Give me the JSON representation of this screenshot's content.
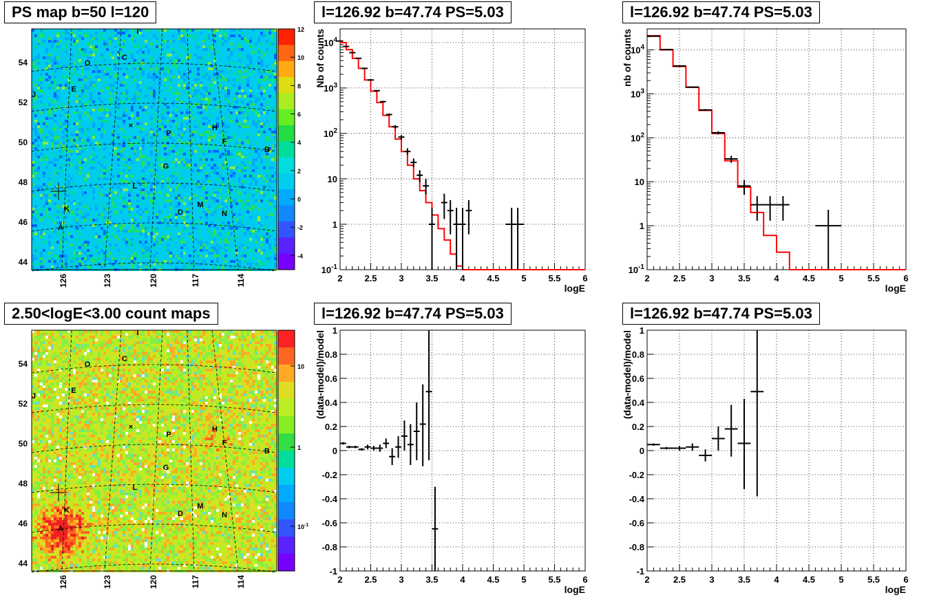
{
  "maps": [
    {
      "title": "PS map b=50 l=120",
      "scheme": "ps",
      "seed": 11,
      "colorbar_ticks": [
        "12",
        "10",
        "8",
        "6",
        "4",
        "2",
        "0",
        "-2",
        "-4"
      ],
      "colorbar_min": -5,
      "colorbar_max": 12
    },
    {
      "title": "2.50<logE<3.00 count maps",
      "scheme": "count",
      "seed": 29,
      "colorbar_ticks": [
        "10",
        "1",
        "10-1"
      ],
      "colorbar_min": 0,
      "colorbar_max": 1
    }
  ],
  "map_axes": {
    "lat_ticks": [
      "54",
      "52",
      "50",
      "48",
      "46",
      "44"
    ],
    "lon_ticks": [
      "126",
      "123",
      "120",
      "117",
      "114"
    ]
  },
  "sources": [
    {
      "name": "I"
    },
    {
      "name": "O"
    },
    {
      "name": "C"
    },
    {
      "name": "J"
    },
    {
      "name": "E"
    },
    {
      "name": "P"
    },
    {
      "name": "H"
    },
    {
      "name": "F"
    },
    {
      "name": "B"
    },
    {
      "name": "G"
    },
    {
      "name": "L"
    },
    {
      "name": "K"
    },
    {
      "name": "M"
    },
    {
      "name": "D"
    },
    {
      "name": "N"
    },
    {
      "name": "A"
    }
  ],
  "chart_data": [
    {
      "type": "line",
      "title": "l=126.92 b=47.74 PS=5.03",
      "xlabel": "logE",
      "ylabel": "Nb of counts",
      "xlim": [
        2,
        6
      ],
      "ylim": [
        0.1,
        20000
      ],
      "yscale": "log",
      "grid": true,
      "x_ticks": [
        "2",
        "2.5",
        "3",
        "3.5",
        "4",
        "4.5",
        "5",
        "5.5",
        "6"
      ],
      "y_ticks": [
        {
          "v": 10000,
          "base": "10",
          "exp": "4"
        },
        {
          "v": 1000,
          "base": "10",
          "exp": "3"
        },
        {
          "v": 100,
          "base": "10",
          "exp": "2"
        },
        {
          "v": 10,
          "base": "10",
          "exp": ""
        },
        {
          "v": 1,
          "base": "1",
          "exp": ""
        },
        {
          "v": 0.1,
          "base": "10",
          "exp": "-1"
        }
      ],
      "model_edges": [
        2.0,
        2.1,
        2.2,
        2.3,
        2.4,
        2.5,
        2.6,
        2.7,
        2.8,
        2.9,
        3.0,
        3.1,
        3.2,
        3.3,
        3.4,
        3.5,
        3.6,
        3.7,
        3.8,
        3.9,
        4.0,
        4.1,
        4.2,
        6.0
      ],
      "model_values": [
        10000,
        7000,
        4500,
        2700,
        1500,
        850,
        480,
        250,
        140,
        75,
        40,
        20,
        10,
        5.5,
        3.0,
        1.6,
        0.8,
        0.45,
        0.22,
        0.12,
        0.1,
        0.1,
        0.1
      ],
      "points": [
        {
          "x": 2.0,
          "y": 10800,
          "xerr": 0.05,
          "ylo": 10600,
          "yhi": 11000
        },
        {
          "x": 2.1,
          "y": 8200,
          "xerr": 0.05,
          "ylo": 8000,
          "yhi": 8400
        },
        {
          "x": 2.2,
          "y": 6000,
          "xerr": 0.05,
          "ylo": 5850,
          "yhi": 6150
        },
        {
          "x": 2.3,
          "y": 4500,
          "xerr": 0.05,
          "ylo": 4400,
          "yhi": 4600
        },
        {
          "x": 2.4,
          "y": 2700,
          "xerr": 0.05,
          "ylo": 2650,
          "yhi": 2750
        },
        {
          "x": 2.5,
          "y": 1500,
          "xerr": 0.05,
          "ylo": 1460,
          "yhi": 1540
        },
        {
          "x": 2.6,
          "y": 870,
          "xerr": 0.05,
          "ylo": 840,
          "yhi": 900
        },
        {
          "x": 2.7,
          "y": 500,
          "xerr": 0.05,
          "ylo": 480,
          "yhi": 520
        },
        {
          "x": 2.8,
          "y": 260,
          "xerr": 0.05,
          "ylo": 245,
          "yhi": 275
        },
        {
          "x": 2.9,
          "y": 140,
          "xerr": 0.05,
          "ylo": 128,
          "yhi": 152
        },
        {
          "x": 3.0,
          "y": 83,
          "xerr": 0.05,
          "ylo": 74,
          "yhi": 92
        },
        {
          "x": 3.1,
          "y": 40,
          "xerr": 0.05,
          "ylo": 34,
          "yhi": 47
        },
        {
          "x": 3.2,
          "y": 23,
          "xerr": 0.05,
          "ylo": 18,
          "yhi": 28
        },
        {
          "x": 3.3,
          "y": 12,
          "xerr": 0.05,
          "ylo": 8.5,
          "yhi": 15.5
        },
        {
          "x": 3.4,
          "y": 7,
          "xerr": 0.05,
          "ylo": 4.5,
          "yhi": 10
        },
        {
          "x": 3.5,
          "y": 1,
          "xerr": 0.05,
          "ylo": 0.1,
          "yhi": 2.3
        },
        {
          "x": 3.7,
          "y": 3,
          "xerr": 0.05,
          "ylo": 1.3,
          "yhi": 4.7
        },
        {
          "x": 3.8,
          "y": 2,
          "xerr": 0.05,
          "ylo": 0.6,
          "yhi": 3.4
        },
        {
          "x": 3.9,
          "y": 1,
          "xerr": 0.05,
          "ylo": 0.1,
          "yhi": 2.3
        },
        {
          "x": 4.0,
          "y": 1,
          "xerr": 0.05,
          "ylo": 0.1,
          "yhi": 2.3
        },
        {
          "x": 4.1,
          "y": 2,
          "xerr": 0.05,
          "ylo": 0.6,
          "yhi": 3.4
        },
        {
          "x": 4.8,
          "y": 1,
          "xerr": 0.1,
          "ylo": 0.1,
          "yhi": 2.3
        },
        {
          "x": 4.9,
          "y": 1,
          "xerr": 0.1,
          "ylo": 0.1,
          "yhi": 2.3
        }
      ]
    },
    {
      "type": "line",
      "title": "l=126.92 b=47.74 PS=5.03",
      "xlabel": "logE",
      "ylabel": "nb of counts",
      "xlim": [
        2,
        6
      ],
      "ylim": [
        0.1,
        30000
      ],
      "yscale": "log",
      "grid": true,
      "x_ticks": [
        "2",
        "2.5",
        "3",
        "3.5",
        "4",
        "4.5",
        "5",
        "5.5",
        "6"
      ],
      "y_ticks": [
        {
          "v": 10000,
          "base": "10",
          "exp": "4"
        },
        {
          "v": 1000,
          "base": "10",
          "exp": "3"
        },
        {
          "v": 100,
          "base": "10",
          "exp": "2"
        },
        {
          "v": 10,
          "base": "10",
          "exp": ""
        },
        {
          "v": 1,
          "base": "1",
          "exp": ""
        },
        {
          "v": 0.1,
          "base": "10",
          "exp": "-1"
        }
      ],
      "model_edges": [
        2.0,
        2.2,
        2.4,
        2.6,
        2.8,
        3.0,
        3.2,
        3.4,
        3.6,
        3.8,
        4.0,
        4.2,
        6.0
      ],
      "model_values": [
        21000,
        10000,
        4200,
        1400,
        420,
        125,
        30,
        7.5,
        2.0,
        0.6,
        0.25,
        0.1
      ],
      "points": [
        {
          "x": 2.1,
          "y": 20500,
          "xerr": 0.1,
          "ylo": 20200,
          "yhi": 20800
        },
        {
          "x": 2.3,
          "y": 10200,
          "xerr": 0.1,
          "ylo": 10000,
          "yhi": 10400
        },
        {
          "x": 2.5,
          "y": 4300,
          "xerr": 0.1,
          "ylo": 4200,
          "yhi": 4400
        },
        {
          "x": 2.7,
          "y": 1420,
          "xerr": 0.1,
          "ylo": 1380,
          "yhi": 1460
        },
        {
          "x": 2.9,
          "y": 430,
          "xerr": 0.1,
          "ylo": 410,
          "yhi": 450
        },
        {
          "x": 3.1,
          "y": 130,
          "xerr": 0.1,
          "ylo": 119,
          "yhi": 141
        },
        {
          "x": 3.3,
          "y": 33,
          "xerr": 0.1,
          "ylo": 27,
          "yhi": 39
        },
        {
          "x": 3.5,
          "y": 8,
          "xerr": 0.1,
          "ylo": 5,
          "yhi": 11
        },
        {
          "x": 3.7,
          "y": 3,
          "xerr": 0.1,
          "ylo": 1.3,
          "yhi": 4.7
        },
        {
          "x": 3.9,
          "y": 3,
          "xerr": 0.1,
          "ylo": 1.3,
          "yhi": 4.7
        },
        {
          "x": 4.1,
          "y": 3,
          "xerr": 0.1,
          "ylo": 1.3,
          "yhi": 4.7
        },
        {
          "x": 4.8,
          "y": 1,
          "xerr": 0.2,
          "ylo": 0.1,
          "yhi": 2.3
        }
      ]
    },
    {
      "type": "scatter",
      "title": "l=126.92 b=47.74 PS=5.03",
      "xlabel": "logE",
      "ylabel": "(data-model)/model",
      "xlim": [
        2,
        6
      ],
      "ylim": [
        -1,
        1
      ],
      "yscale": "linear",
      "grid": true,
      "x_ticks": [
        "2",
        "2.5",
        "3",
        "3.5",
        "4",
        "4.5",
        "5",
        "5.5",
        "6"
      ],
      "y_ticks": [
        "1",
        "0.8",
        "0.6",
        "0.4",
        "0.2",
        "0",
        "-0.2",
        "-0.4",
        "-0.6",
        "-0.8",
        "-1"
      ],
      "points": [
        {
          "x": 2.05,
          "y": 0.06,
          "xerr": 0.05,
          "ylo": 0.05,
          "yhi": 0.07
        },
        {
          "x": 2.15,
          "y": 0.03,
          "xerr": 0.05,
          "ylo": 0.02,
          "yhi": 0.04
        },
        {
          "x": 2.25,
          "y": 0.03,
          "xerr": 0.05,
          "ylo": 0.02,
          "yhi": 0.04
        },
        {
          "x": 2.35,
          "y": 0.01,
          "xerr": 0.05,
          "ylo": 0.0,
          "yhi": 0.02
        },
        {
          "x": 2.45,
          "y": 0.03,
          "xerr": 0.05,
          "ylo": 0.01,
          "yhi": 0.05
        },
        {
          "x": 2.55,
          "y": 0.02,
          "xerr": 0.05,
          "ylo": 0.0,
          "yhi": 0.04
        },
        {
          "x": 2.65,
          "y": 0.02,
          "xerr": 0.05,
          "ylo": -0.01,
          "yhi": 0.05
        },
        {
          "x": 2.75,
          "y": 0.06,
          "xerr": 0.05,
          "ylo": 0.02,
          "yhi": 0.1
        },
        {
          "x": 2.85,
          "y": -0.05,
          "xerr": 0.05,
          "ylo": -0.12,
          "yhi": 0.02
        },
        {
          "x": 2.95,
          "y": 0.03,
          "xerr": 0.05,
          "ylo": -0.06,
          "yhi": 0.12
        },
        {
          "x": 3.05,
          "y": 0.12,
          "xerr": 0.05,
          "ylo": 0.0,
          "yhi": 0.25
        },
        {
          "x": 3.15,
          "y": 0.05,
          "xerr": 0.05,
          "ylo": -0.12,
          "yhi": 0.22
        },
        {
          "x": 3.25,
          "y": 0.16,
          "xerr": 0.05,
          "ylo": -0.08,
          "yhi": 0.4
        },
        {
          "x": 3.35,
          "y": 0.22,
          "xerr": 0.05,
          "ylo": -0.13,
          "yhi": 0.55
        },
        {
          "x": 3.45,
          "y": 0.49,
          "xerr": 0.05,
          "ylo": -0.08,
          "yhi": 1.0
        },
        {
          "x": 3.55,
          "y": -0.65,
          "xerr": 0.05,
          "ylo": -1.0,
          "yhi": -0.3
        }
      ]
    },
    {
      "type": "scatter",
      "title": "l=126.92 b=47.74 PS=5.03",
      "xlabel": "logE",
      "ylabel": "(data-model)/model",
      "xlim": [
        2,
        6
      ],
      "ylim": [
        -1,
        1
      ],
      "yscale": "linear",
      "grid": true,
      "x_ticks": [
        "2",
        "2.5",
        "3",
        "3.5",
        "4",
        "4.5",
        "5",
        "5.5",
        "6"
      ],
      "y_ticks": [
        "1",
        "0.8",
        "0.6",
        "0.4",
        "0.2",
        "0",
        "-0.2",
        "-0.4",
        "-0.6",
        "-0.8",
        "-1"
      ],
      "points": [
        {
          "x": 2.1,
          "y": 0.05,
          "xerr": 0.1,
          "ylo": 0.04,
          "yhi": 0.06
        },
        {
          "x": 2.3,
          "y": 0.02,
          "xerr": 0.1,
          "ylo": 0.01,
          "yhi": 0.03
        },
        {
          "x": 2.5,
          "y": 0.02,
          "xerr": 0.1,
          "ylo": 0.0,
          "yhi": 0.04
        },
        {
          "x": 2.7,
          "y": 0.03,
          "xerr": 0.1,
          "ylo": 0.0,
          "yhi": 0.06
        },
        {
          "x": 2.9,
          "y": -0.04,
          "xerr": 0.1,
          "ylo": -0.09,
          "yhi": 0.01
        },
        {
          "x": 3.1,
          "y": 0.1,
          "xerr": 0.1,
          "ylo": 0.0,
          "yhi": 0.2
        },
        {
          "x": 3.3,
          "y": 0.18,
          "xerr": 0.1,
          "ylo": -0.05,
          "yhi": 0.38
        },
        {
          "x": 3.5,
          "y": 0.06,
          "xerr": 0.1,
          "ylo": -0.32,
          "yhi": 0.43
        },
        {
          "x": 3.7,
          "y": 0.49,
          "xerr": 0.1,
          "ylo": -0.38,
          "yhi": 1.0
        }
      ]
    }
  ]
}
